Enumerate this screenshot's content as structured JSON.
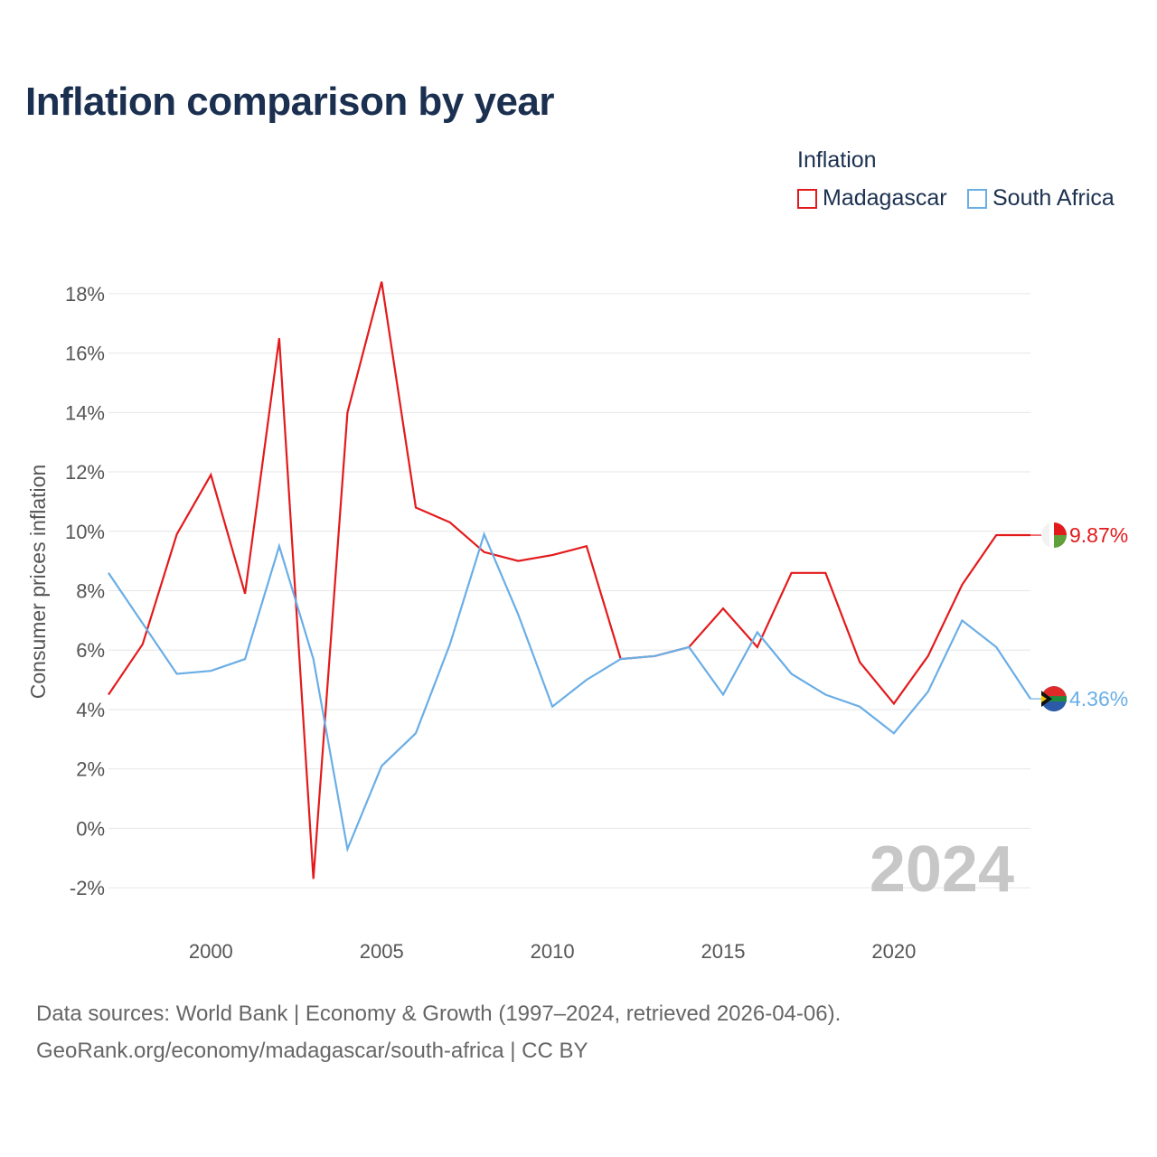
{
  "title": "Inflation comparison by year",
  "legend": {
    "title": "Inflation",
    "items": [
      {
        "name": "Madagascar",
        "color": "#e31a1c"
      },
      {
        "name": "South Africa",
        "color": "#6aaee6"
      }
    ]
  },
  "footer": {
    "line1": "Data sources: World Bank | Economy & Growth (1997–2024, retrieved 2026-04-06).",
    "line2": "GeoRank.org/economy/madagascar/south-africa | CC BY"
  },
  "chart_data": {
    "type": "line",
    "title": "Inflation comparison by year",
    "xlabel": "",
    "ylabel": "Consumer prices inflation",
    "xlim": [
      1997,
      2024
    ],
    "ylim": [
      -3,
      19
    ],
    "x_ticks": [
      2000,
      2005,
      2010,
      2015,
      2020
    ],
    "y_ticks": [
      -2,
      0,
      2,
      4,
      6,
      8,
      10,
      12,
      14,
      16,
      18
    ],
    "y_tick_labels": [
      "-2%",
      "0%",
      "2%",
      "4%",
      "6%",
      "8%",
      "10%",
      "12%",
      "14%",
      "16%",
      "18%"
    ],
    "grid": true,
    "legend_position": "top-right",
    "watermark_year": "2024",
    "x": [
      1997,
      1998,
      1999,
      2000,
      2001,
      2002,
      2003,
      2004,
      2005,
      2006,
      2007,
      2008,
      2009,
      2010,
      2011,
      2012,
      2013,
      2014,
      2015,
      2016,
      2017,
      2018,
      2019,
      2020,
      2021,
      2022,
      2023,
      2024
    ],
    "series": [
      {
        "name": "Madagascar",
        "color": "#e31a1c",
        "values": [
          4.5,
          6.2,
          9.9,
          11.9,
          7.9,
          16.5,
          -1.7,
          14.0,
          18.4,
          10.8,
          10.3,
          9.3,
          9.0,
          9.2,
          9.5,
          5.7,
          5.8,
          6.1,
          7.4,
          6.1,
          8.6,
          8.6,
          5.6,
          4.2,
          5.8,
          8.2,
          9.87,
          9.87
        ],
        "end_label": "9.87%"
      },
      {
        "name": "South Africa",
        "color": "#6aaee6",
        "values": [
          8.6,
          6.9,
          5.2,
          5.3,
          5.7,
          9.5,
          5.7,
          -0.7,
          2.1,
          3.2,
          6.2,
          9.9,
          7.2,
          4.1,
          5.0,
          5.7,
          5.8,
          6.1,
          4.5,
          6.6,
          5.2,
          4.5,
          4.1,
          3.2,
          4.6,
          7.0,
          6.1,
          4.36
        ],
        "end_label": "4.36%"
      }
    ]
  }
}
